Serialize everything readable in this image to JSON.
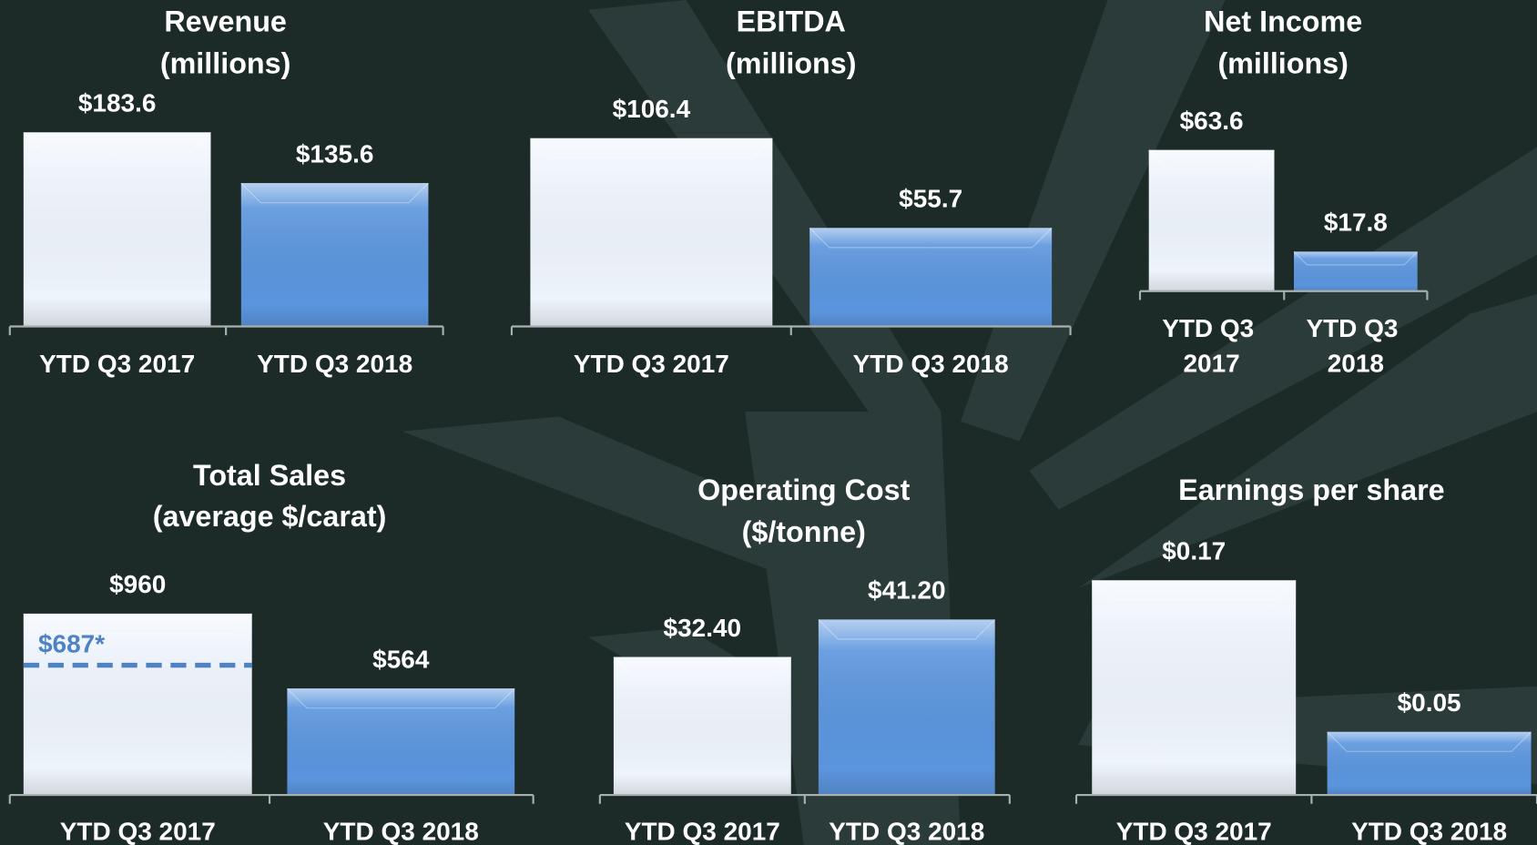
{
  "chart_data": [
    {
      "type": "bar",
      "title": "Revenue",
      "subtitle": "(millions)",
      "categories": [
        "YTD Q3 2017",
        "YTD Q3 2018"
      ],
      "values": [
        183.6,
        135.6
      ],
      "value_labels": [
        "$183.6",
        "$135.6"
      ],
      "colors": [
        "#eef4fc",
        "#5b95dd"
      ]
    },
    {
      "type": "bar",
      "title": "EBITDA",
      "subtitle": "(millions)",
      "categories": [
        "YTD Q3 2017",
        "YTD Q3 2018"
      ],
      "values": [
        106.4,
        55.7
      ],
      "value_labels": [
        "$106.4",
        "$55.7"
      ],
      "colors": [
        "#eef4fc",
        "#5b95dd"
      ]
    },
    {
      "type": "bar",
      "title": "Net Income",
      "subtitle": "(millions)",
      "categories": [
        "YTD Q3 2017",
        "YTD Q3 2018"
      ],
      "values": [
        63.6,
        17.8
      ],
      "value_labels": [
        "$63.6",
        "$17.8"
      ],
      "colors": [
        "#eef4fc",
        "#5b95dd"
      ]
    },
    {
      "type": "bar",
      "title": "Total Sales",
      "subtitle": "(average $/carat)",
      "categories": [
        "YTD Q3 2017",
        "YTD Q3 2018"
      ],
      "values": [
        960,
        564
      ],
      "value_labels": [
        "$960",
        "$564"
      ],
      "colors": [
        "#eef4fc",
        "#5b95dd"
      ],
      "reference": {
        "value": 687,
        "label": "$687*",
        "color": "#4f82c4"
      }
    },
    {
      "type": "bar",
      "title": "Operating Cost",
      "subtitle": "($/tonne)",
      "categories": [
        "YTD Q3 2017",
        "YTD Q3 2018"
      ],
      "values": [
        32.4,
        41.2
      ],
      "value_labels": [
        "$32.40",
        "$41.20"
      ],
      "colors": [
        "#eef4fc",
        "#5b95dd"
      ]
    },
    {
      "type": "bar",
      "title": "Earnings per share",
      "categories": [
        "YTD Q3 2017",
        "YTD Q3 2018"
      ],
      "values": [
        0.17,
        0.05
      ],
      "value_labels": [
        "$0.17",
        "$0.05"
      ],
      "colors": [
        "#eef4fc",
        "#5b95dd"
      ]
    }
  ]
}
